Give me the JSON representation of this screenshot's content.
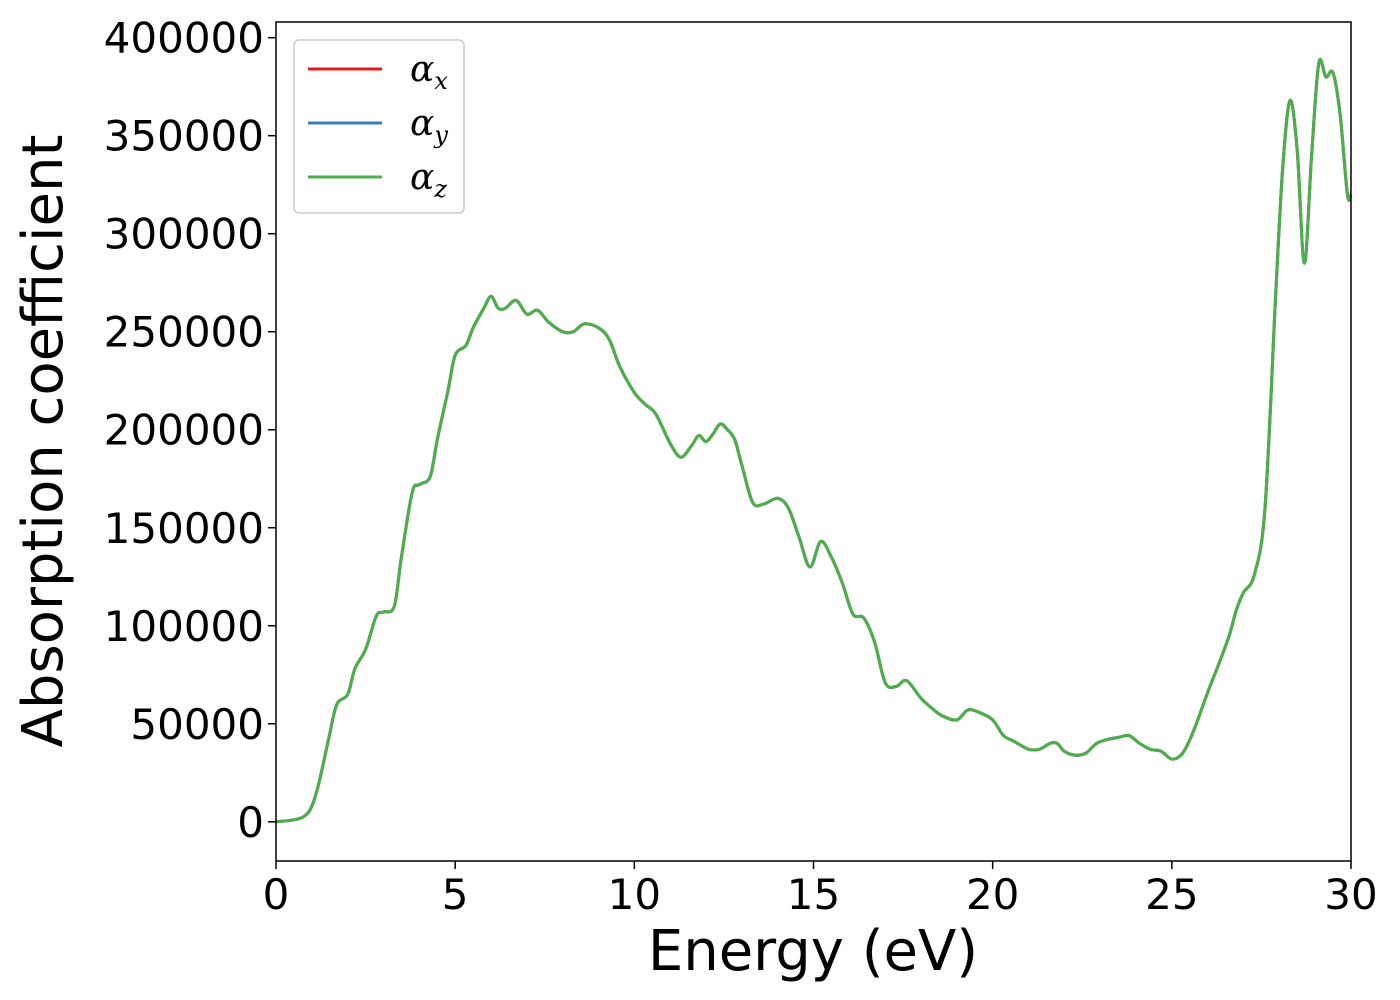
{
  "chart_data": {
    "type": "line",
    "title": "",
    "xlabel": "Energy (eV)",
    "ylabel": "Absorption coefficient",
    "xlim": [
      0,
      30
    ],
    "ylim": [
      -20000,
      408000
    ],
    "xticks": [
      0,
      5,
      10,
      15,
      20,
      25,
      30
    ],
    "yticks": [
      0,
      50000,
      100000,
      150000,
      200000,
      250000,
      300000,
      350000,
      400000
    ],
    "grid": false,
    "legend_position": "top-left",
    "x": [
      0,
      0.5,
      0.8,
      1.0,
      1.2,
      1.5,
      1.7,
      2.0,
      2.2,
      2.5,
      2.8,
      3.0,
      3.3,
      3.5,
      3.8,
      4.0,
      4.3,
      4.5,
      4.8,
      5.0,
      5.3,
      5.5,
      5.8,
      6.0,
      6.2,
      6.4,
      6.7,
      7.0,
      7.3,
      7.6,
      8.0,
      8.3,
      8.6,
      9.0,
      9.3,
      9.6,
      10.0,
      10.3,
      10.6,
      11.0,
      11.3,
      11.6,
      11.8,
      12.0,
      12.2,
      12.4,
      12.6,
      12.8,
      13.0,
      13.3,
      13.6,
      14.0,
      14.3,
      14.6,
      14.9,
      15.2,
      15.5,
      15.8,
      16.1,
      16.4,
      16.7,
      17.0,
      17.3,
      17.6,
      18.0,
      18.3,
      18.6,
      19.0,
      19.3,
      19.6,
      20.0,
      20.3,
      20.6,
      21.0,
      21.3,
      21.6,
      21.8,
      22.0,
      22.3,
      22.6,
      22.9,
      23.2,
      23.5,
      23.8,
      24.1,
      24.4,
      24.7,
      25.0,
      25.3,
      25.6,
      26.0,
      26.3,
      26.6,
      26.8,
      27.0,
      27.3,
      27.6,
      27.9,
      28.1,
      28.3,
      28.5,
      28.7,
      28.9,
      29.1,
      29.3,
      29.5,
      29.7,
      29.9,
      30.0
    ],
    "series": [
      {
        "name": "α_x",
        "color": "#e41a1c",
        "values": [
          0,
          1000,
          3000,
          8000,
          20000,
          45000,
          60000,
          65000,
          78000,
          88000,
          105000,
          107000,
          110000,
          135000,
          168000,
          172000,
          176000,
          195000,
          220000,
          238000,
          243000,
          252000,
          262000,
          268000,
          262000,
          262000,
          266000,
          259000,
          261000,
          255000,
          250000,
          250000,
          254000,
          252000,
          246000,
          232000,
          219000,
          213000,
          208000,
          193000,
          186000,
          192000,
          197000,
          194000,
          198000,
          203000,
          200000,
          195000,
          182000,
          163000,
          162000,
          165000,
          160000,
          145000,
          130000,
          143000,
          135000,
          122000,
          106000,
          104000,
          92000,
          71000,
          69000,
          72000,
          63000,
          58000,
          54000,
          52000,
          57000,
          56000,
          52000,
          44000,
          41000,
          37000,
          37000,
          40000,
          40000,
          36000,
          34000,
          35000,
          40000,
          42000,
          43000,
          44000,
          40000,
          37000,
          36000,
          32000,
          35000,
          46000,
          66000,
          80000,
          95000,
          108000,
          117000,
          126000,
          160000,
          270000,
          335000,
          368000,
          342000,
          285000,
          340000,
          387000,
          380000,
          382000,
          360000,
          320000,
          320000
        ]
      },
      {
        "name": "α_y",
        "color": "#377eb8",
        "values": [
          0,
          1000,
          3000,
          8000,
          20000,
          45000,
          60000,
          65000,
          78000,
          88000,
          105000,
          107000,
          110000,
          135000,
          168000,
          172000,
          176000,
          195000,
          220000,
          238000,
          243000,
          252000,
          262000,
          268000,
          262000,
          262000,
          266000,
          259000,
          261000,
          255000,
          250000,
          250000,
          254000,
          252000,
          246000,
          232000,
          219000,
          213000,
          208000,
          193000,
          186000,
          192000,
          197000,
          194000,
          198000,
          203000,
          200000,
          195000,
          182000,
          163000,
          162000,
          165000,
          160000,
          145000,
          130000,
          143000,
          135000,
          122000,
          106000,
          104000,
          92000,
          71000,
          69000,
          72000,
          63000,
          58000,
          54000,
          52000,
          57000,
          56000,
          52000,
          44000,
          41000,
          37000,
          37000,
          40000,
          40000,
          36000,
          34000,
          35000,
          40000,
          42000,
          43000,
          44000,
          40000,
          37000,
          36000,
          32000,
          35000,
          46000,
          66000,
          80000,
          95000,
          108000,
          117000,
          126000,
          160000,
          270000,
          335000,
          368000,
          342000,
          285000,
          340000,
          387000,
          380000,
          382000,
          360000,
          320000,
          320000
        ]
      },
      {
        "name": "α_z",
        "color": "#4daf4a",
        "values": [
          0,
          1000,
          3000,
          8000,
          20000,
          45000,
          60000,
          65000,
          78000,
          88000,
          105000,
          107000,
          110000,
          135000,
          168000,
          172000,
          176000,
          195000,
          220000,
          238000,
          243000,
          252000,
          262000,
          268000,
          262000,
          262000,
          266000,
          259000,
          261000,
          255000,
          250000,
          250000,
          254000,
          252000,
          246000,
          232000,
          219000,
          213000,
          208000,
          193000,
          186000,
          192000,
          197000,
          194000,
          198000,
          203000,
          200000,
          195000,
          182000,
          163000,
          162000,
          165000,
          160000,
          145000,
          130000,
          143000,
          135000,
          122000,
          106000,
          104000,
          92000,
          71000,
          69000,
          72000,
          63000,
          58000,
          54000,
          52000,
          57000,
          56000,
          52000,
          44000,
          41000,
          37000,
          37000,
          40000,
          40000,
          36000,
          34000,
          35000,
          40000,
          42000,
          43000,
          44000,
          40000,
          37000,
          36000,
          32000,
          35000,
          46000,
          66000,
          80000,
          95000,
          108000,
          117000,
          126000,
          160000,
          270000,
          335000,
          368000,
          342000,
          285000,
          340000,
          387000,
          380000,
          382000,
          360000,
          320000,
          320000
        ]
      }
    ],
    "legend": [
      {
        "symbol": "α",
        "sub": "x",
        "color": "#e41a1c"
      },
      {
        "symbol": "α",
        "sub": "y",
        "color": "#377eb8"
      },
      {
        "symbol": "α",
        "sub": "z",
        "color": "#4daf4a"
      }
    ]
  }
}
